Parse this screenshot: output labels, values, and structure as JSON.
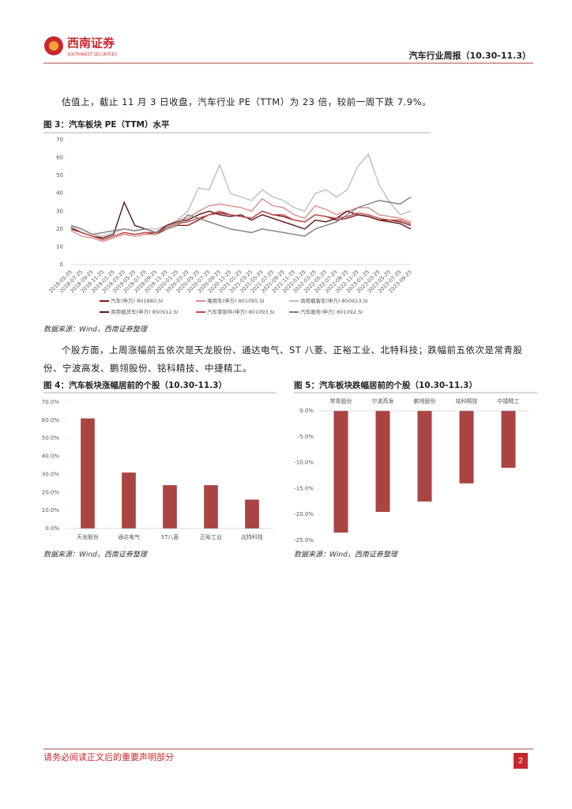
{
  "header": {
    "logo": "西南证券",
    "logo_en": "SOUTHWEST SECURITIES",
    "title": "汽车行业周报（10.30-11.3）"
  },
  "paragraphs": [
    "估值上，截止 11 月 3 日收盘，汽车行业 PE（TTM）为 23 倍，较前一周下跌 7.9%。",
    "个股方面，上周涨幅前五依次是天龙股份、通达电气、ST 八菱、正裕工业、北特科技；跌幅前五依次是常青股份、宁波高发、鹏翎股份、铭科精技、中捷精工。"
  ],
  "chart_data": [
    {
      "type": "line",
      "title": "图 3：汽车板块 PE（TTM）水平",
      "source": "数据来源：Wind，西南证券整理",
      "x": [
        "2018-05-25",
        "2018-07-25",
        "2018-09-25",
        "2018-11-25",
        "2019-01-25",
        "2019-03-25",
        "2019-05-25",
        "2019-07-25",
        "2019-09-25",
        "2019-11-25",
        "2020-01-25",
        "2020-03-25",
        "2020-05-25",
        "2020-07-25",
        "2020-09-25",
        "2020-11-25",
        "2021-01-25",
        "2021-03-25",
        "2021-05-25",
        "2021-07-25",
        "2021-09-25",
        "2021-11-25",
        "2022-01-25",
        "2022-03-25",
        "2022-05-25",
        "2022-07-25",
        "2022-09-25",
        "2022-11-25",
        "2023-01-25",
        "2023-03-25",
        "2023-05-25",
        "2023-07-25",
        "2023-09-25"
      ],
      "series": [
        {
          "name": "汽车(申万) 801880.SI",
          "color": "#8b1a1a",
          "values": [
            21,
            18,
            16,
            14,
            16,
            18,
            17,
            18,
            17,
            20,
            22,
            22,
            25,
            28,
            29,
            28,
            27,
            26,
            30,
            28,
            27,
            25,
            24,
            28,
            27,
            25,
            26,
            28,
            27,
            25,
            25,
            24,
            22
          ]
        },
        {
          "name": "乘用车(申万) 801095.SI",
          "color": "#e08a8a",
          "values": [
            19,
            16,
            15,
            13,
            15,
            17,
            16,
            17,
            17,
            22,
            25,
            26,
            30,
            33,
            34,
            33,
            32,
            30,
            37,
            33,
            32,
            28,
            26,
            33,
            31,
            28,
            30,
            32,
            32,
            28,
            27,
            26,
            24
          ]
        },
        {
          "name": "商用载客车(申万) 850913.SI",
          "color": "#bdbdbd",
          "values": [
            22,
            20,
            17,
            16,
            18,
            20,
            19,
            20,
            20,
            22,
            25,
            30,
            43,
            42,
            56,
            40,
            38,
            36,
            42,
            38,
            36,
            32,
            30,
            40,
            42,
            38,
            42,
            55,
            62,
            45,
            35,
            28,
            30
          ]
        },
        {
          "name": "商用载货车(申万) 850912.SI",
          "color": "#5a1616",
          "values": [
            20,
            18,
            16,
            15,
            17,
            35,
            22,
            20,
            18,
            22,
            24,
            25,
            28,
            30,
            28,
            27,
            28,
            25,
            28,
            26,
            24,
            22,
            20,
            25,
            24,
            26,
            30,
            28,
            27,
            25,
            24,
            23,
            20
          ]
        },
        {
          "name": "汽车零部件(申万) 801093.SI",
          "color": "#c0504d",
          "values": [
            21,
            18,
            16,
            14,
            16,
            18,
            17,
            18,
            18,
            21,
            23,
            24,
            26,
            28,
            30,
            28,
            27,
            26,
            30,
            28,
            28,
            25,
            24,
            28,
            27,
            26,
            27,
            29,
            28,
            26,
            25,
            25,
            23
          ]
        },
        {
          "name": "汽车服务(申万) 801092.SI",
          "color": "#7f7f7f",
          "values": [
            22,
            20,
            17,
            18,
            19,
            20,
            19,
            20,
            18,
            20,
            22,
            28,
            26,
            24,
            22,
            20,
            19,
            18,
            20,
            19,
            18,
            17,
            16,
            20,
            22,
            24,
            28,
            32,
            34,
            36,
            35,
            34,
            38
          ]
        }
      ],
      "ylim": [
        0,
        70
      ],
      "yticks": [
        0,
        10,
        20,
        30,
        40,
        50,
        60,
        70
      ]
    },
    {
      "type": "bar",
      "title": "图 4：汽车板块涨幅居前的个股（10.30-11.3）",
      "source": "数据来源：Wind，西南证券整理",
      "categories": [
        "天龙股份",
        "通达电气",
        "ST八菱",
        "正裕工业",
        "北特科技"
      ],
      "values": [
        61,
        31,
        24,
        24,
        16
      ],
      "color": "#a94442",
      "ylim": [
        0,
        70
      ],
      "yticks": [
        {
          "value": 0,
          "label": "0.0%"
        },
        {
          "value": 10,
          "label": "10.0%"
        },
        {
          "value": 20,
          "label": "20.0%"
        },
        {
          "value": 30,
          "label": "30.0%"
        },
        {
          "value": 40,
          "label": "40.0%"
        },
        {
          "value": 50,
          "label": "50.0%"
        },
        {
          "value": 60,
          "label": "60.0%"
        },
        {
          "value": 70,
          "label": "70.0%"
        }
      ]
    },
    {
      "type": "bar",
      "title": "图 5：汽车板块跌幅居前的个股（10.30-11.3）",
      "source": "数据来源：Wind，西南证券整理",
      "categories": [
        "常青股份",
        "宁波高发",
        "鹏翎股份",
        "铭科精技",
        "中捷精工"
      ],
      "values": [
        -23.5,
        -19.5,
        -17.5,
        -14,
        -11
      ],
      "color": "#a94442",
      "ylim": [
        -25,
        0
      ],
      "yticks": [
        {
          "value": 0,
          "label": "0.0%"
        },
        {
          "value": -5,
          "label": "-5.0%"
        },
        {
          "value": -10,
          "label": "-10.0%"
        },
        {
          "value": -15,
          "label": "-15.0%"
        },
        {
          "value": -20,
          "label": "-20.0%"
        },
        {
          "value": -25,
          "label": "-25.0%"
        }
      ]
    }
  ],
  "footer": {
    "disclaimer": "请务必阅读正文后的重要声明部分",
    "page": "2"
  }
}
